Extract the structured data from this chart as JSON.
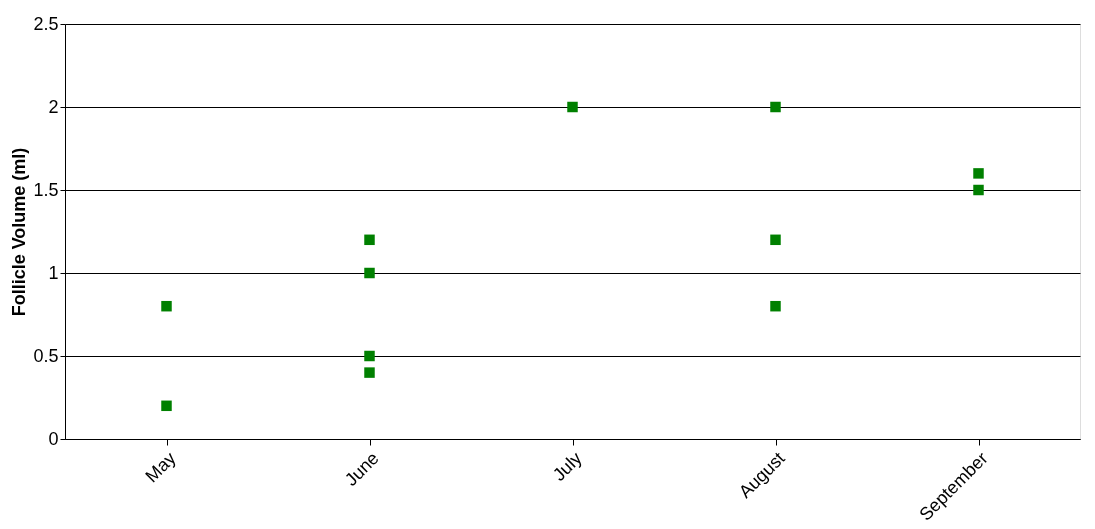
{
  "chart_data": {
    "type": "scatter",
    "ylabel": "Follicle Volume (ml)",
    "categories": [
      "May",
      "June",
      "July",
      "August",
      "September"
    ],
    "series": [
      {
        "color": "#008000",
        "x": [
          "May",
          "May",
          "June",
          "June",
          "June",
          "June",
          "July",
          "August",
          "August",
          "August",
          "September",
          "September"
        ],
        "values": [
          0.8,
          0.2,
          1.2,
          1.0,
          0.5,
          0.4,
          2.0,
          2.0,
          1.2,
          0.8,
          1.6,
          1.5
        ]
      }
    ],
    "ylim": [
      0,
      2.5
    ],
    "yticks": [
      0,
      0.5,
      1,
      1.5,
      2,
      2.5
    ],
    "grid": "y",
    "marker": "square",
    "legend": false
  }
}
